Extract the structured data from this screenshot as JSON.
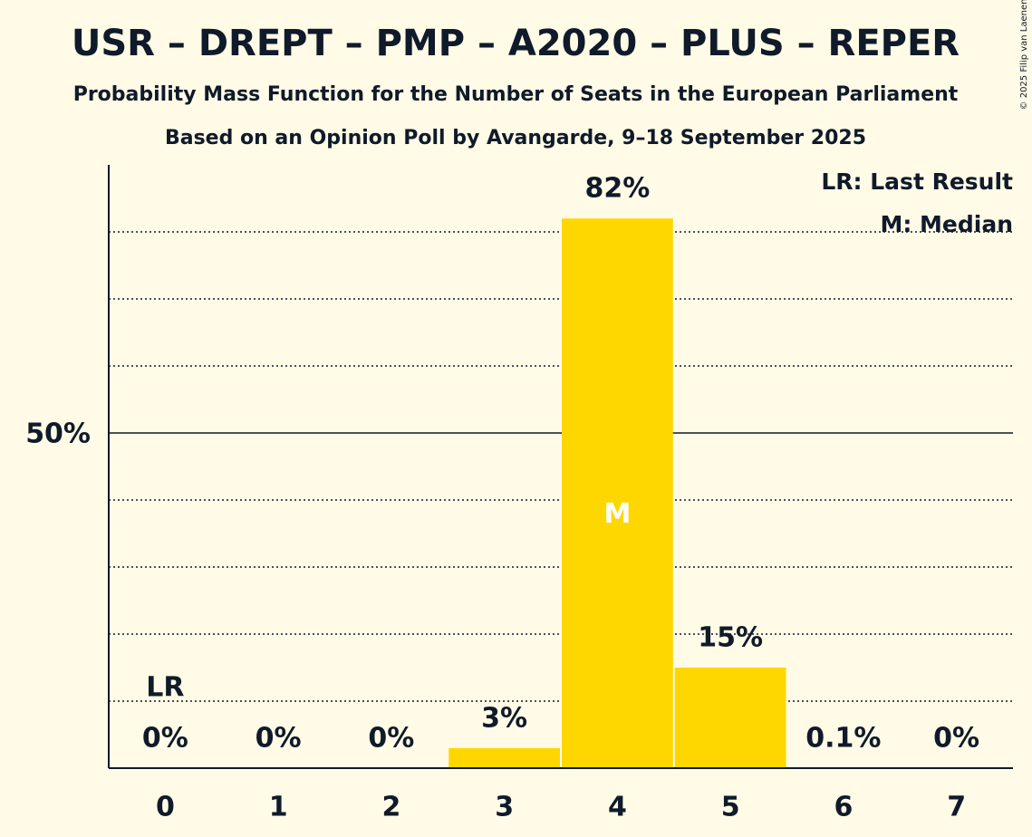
{
  "chart_data": {
    "type": "bar",
    "title": "USR – DREPT – PMP – A2020 – PLUS – REPER",
    "subtitle": "Probability Mass Function for the Number of Seats in the European Parliament",
    "subtitle2": "Based on an Opinion Poll by Avangarde, 9–18 September 2025",
    "copyright": "© 2025 Filip van Laenen",
    "categories": [
      "0",
      "1",
      "2",
      "3",
      "4",
      "5",
      "6",
      "7"
    ],
    "values": [
      0,
      0,
      0,
      3,
      82,
      15,
      0.1,
      0
    ],
    "value_labels": [
      "0%",
      "0%",
      "0%",
      "3%",
      "82%",
      "15%",
      "0.1%",
      "0%"
    ],
    "color": "#ffd700",
    "ylim": [
      0,
      90
    ],
    "yticks": [
      {
        "value": 50,
        "label": "50%"
      }
    ],
    "grid_lines": [
      10,
      20,
      30,
      40,
      60,
      70,
      80
    ],
    "last_result_category": 0,
    "last_result_mark": "LR",
    "median_category": 4,
    "median_mark": "M",
    "legend": [
      "LR: Last Result",
      "M: Median"
    ],
    "legend_position": "top-right"
  }
}
